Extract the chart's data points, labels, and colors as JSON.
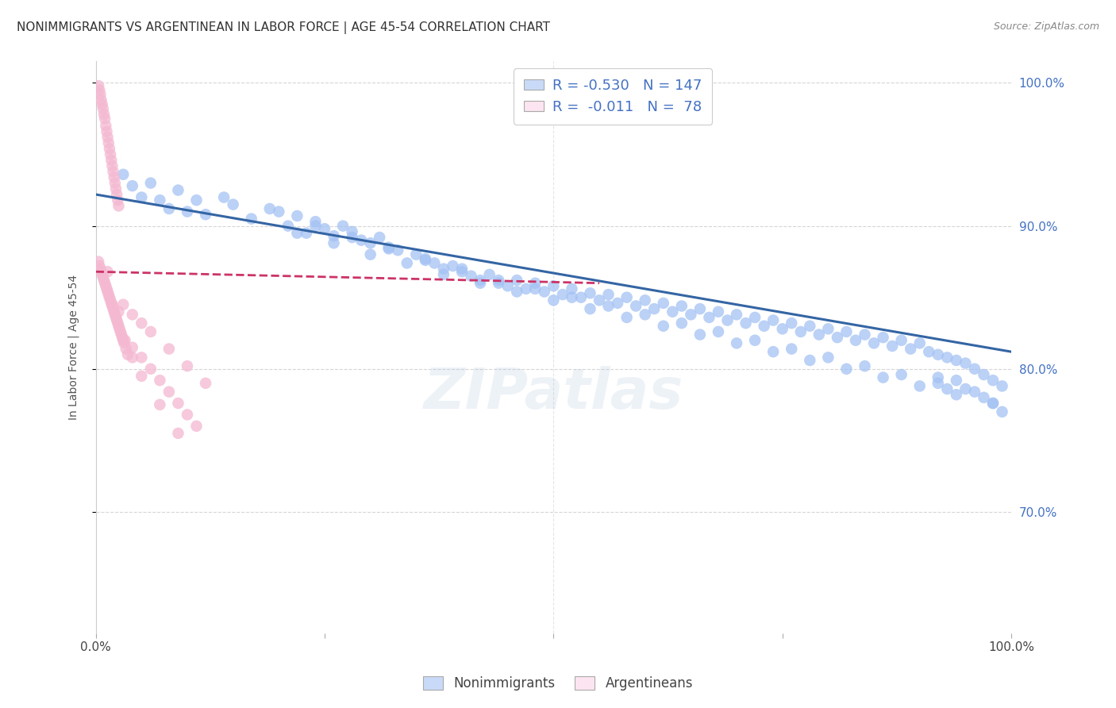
{
  "title": "NONIMMIGRANTS VS ARGENTINEAN IN LABOR FORCE | AGE 45-54 CORRELATION CHART",
  "source": "Source: ZipAtlas.com",
  "ylabel": "In Labor Force | Age 45-54",
  "watermark": "ZIPatlas",
  "legend_r1": "-0.530",
  "legend_n1": "147",
  "legend_r2": "-0.011",
  "legend_n2": "78",
  "blue_color": "#a4c2f4",
  "pink_color": "#f4b8d1",
  "blue_line_color": "#3465a4",
  "pink_line_color": "#cc3366",
  "blue_fill": "#c9daf8",
  "pink_fill": "#fce5f0",
  "background": "#ffffff",
  "grid_color": "#cccccc",
  "title_color": "#444444",
  "right_axis_color": "#4472c4",
  "blue_scatter_x": [
    0.03,
    0.04,
    0.05,
    0.06,
    0.07,
    0.08,
    0.09,
    0.1,
    0.11,
    0.12,
    0.14,
    0.15,
    0.17,
    0.19,
    0.21,
    0.22,
    0.23,
    0.24,
    0.25,
    0.26,
    0.27,
    0.28,
    0.29,
    0.3,
    0.31,
    0.32,
    0.33,
    0.35,
    0.36,
    0.37,
    0.38,
    0.39,
    0.4,
    0.41,
    0.42,
    0.43,
    0.44,
    0.45,
    0.46,
    0.47,
    0.48,
    0.49,
    0.5,
    0.51,
    0.52,
    0.53,
    0.54,
    0.55,
    0.56,
    0.57,
    0.58,
    0.59,
    0.6,
    0.61,
    0.62,
    0.63,
    0.64,
    0.65,
    0.66,
    0.67,
    0.68,
    0.69,
    0.7,
    0.71,
    0.72,
    0.73,
    0.74,
    0.75,
    0.76,
    0.77,
    0.78,
    0.79,
    0.8,
    0.81,
    0.82,
    0.83,
    0.84,
    0.85,
    0.86,
    0.87,
    0.88,
    0.89,
    0.9,
    0.91,
    0.92,
    0.93,
    0.94,
    0.95,
    0.96,
    0.97,
    0.98,
    0.99,
    0.22,
    0.26,
    0.3,
    0.34,
    0.38,
    0.42,
    0.46,
    0.5,
    0.54,
    0.58,
    0.62,
    0.66,
    0.7,
    0.74,
    0.78,
    0.82,
    0.86,
    0.9,
    0.94,
    0.98,
    0.2,
    0.24,
    0.28,
    0.32,
    0.36,
    0.4,
    0.44,
    0.48,
    0.52,
    0.56,
    0.6,
    0.64,
    0.68,
    0.72,
    0.76,
    0.8,
    0.84,
    0.88,
    0.92,
    0.96,
    0.97,
    0.98,
    0.99,
    0.95,
    0.94,
    0.93,
    0.92
  ],
  "blue_scatter_y": [
    0.936,
    0.928,
    0.92,
    0.93,
    0.918,
    0.912,
    0.925,
    0.91,
    0.918,
    0.908,
    0.92,
    0.915,
    0.905,
    0.912,
    0.9,
    0.907,
    0.895,
    0.903,
    0.898,
    0.893,
    0.9,
    0.896,
    0.89,
    0.888,
    0.892,
    0.885,
    0.883,
    0.88,
    0.877,
    0.874,
    0.87,
    0.872,
    0.868,
    0.865,
    0.862,
    0.866,
    0.86,
    0.858,
    0.862,
    0.856,
    0.86,
    0.854,
    0.858,
    0.852,
    0.856,
    0.85,
    0.853,
    0.848,
    0.852,
    0.846,
    0.85,
    0.844,
    0.848,
    0.842,
    0.846,
    0.84,
    0.844,
    0.838,
    0.842,
    0.836,
    0.84,
    0.834,
    0.838,
    0.832,
    0.836,
    0.83,
    0.834,
    0.828,
    0.832,
    0.826,
    0.83,
    0.824,
    0.828,
    0.822,
    0.826,
    0.82,
    0.824,
    0.818,
    0.822,
    0.816,
    0.82,
    0.814,
    0.818,
    0.812,
    0.81,
    0.808,
    0.806,
    0.804,
    0.8,
    0.796,
    0.792,
    0.788,
    0.895,
    0.888,
    0.88,
    0.874,
    0.866,
    0.86,
    0.854,
    0.848,
    0.842,
    0.836,
    0.83,
    0.824,
    0.818,
    0.812,
    0.806,
    0.8,
    0.794,
    0.788,
    0.782,
    0.776,
    0.91,
    0.9,
    0.892,
    0.884,
    0.876,
    0.87,
    0.862,
    0.856,
    0.85,
    0.844,
    0.838,
    0.832,
    0.826,
    0.82,
    0.814,
    0.808,
    0.802,
    0.796,
    0.79,
    0.784,
    0.78,
    0.776,
    0.77,
    0.786,
    0.792,
    0.786,
    0.794
  ],
  "pink_scatter_x": [
    0.003,
    0.004,
    0.005,
    0.006,
    0.007,
    0.008,
    0.009,
    0.01,
    0.011,
    0.012,
    0.013,
    0.014,
    0.015,
    0.016,
    0.017,
    0.018,
    0.019,
    0.02,
    0.021,
    0.022,
    0.023,
    0.024,
    0.025,
    0.003,
    0.005,
    0.007,
    0.009,
    0.011,
    0.013,
    0.015,
    0.017,
    0.019,
    0.021,
    0.023,
    0.025,
    0.027,
    0.029,
    0.031,
    0.033,
    0.035,
    0.004,
    0.006,
    0.008,
    0.01,
    0.012,
    0.014,
    0.016,
    0.018,
    0.02,
    0.022,
    0.024,
    0.026,
    0.028,
    0.03,
    0.04,
    0.05,
    0.06,
    0.07,
    0.08,
    0.09,
    0.1,
    0.11,
    0.03,
    0.04,
    0.05,
    0.06,
    0.08,
    0.1,
    0.12,
    0.013,
    0.018,
    0.025,
    0.032,
    0.04,
    0.05,
    0.07,
    0.09
  ],
  "pink_scatter_y": [
    0.998,
    0.995,
    0.992,
    0.988,
    0.985,
    0.982,
    0.978,
    0.975,
    0.97,
    0.966,
    0.962,
    0.958,
    0.954,
    0.95,
    0.946,
    0.942,
    0.938,
    0.934,
    0.93,
    0.926,
    0.922,
    0.918,
    0.914,
    0.875,
    0.87,
    0.866,
    0.862,
    0.858,
    0.854,
    0.85,
    0.846,
    0.842,
    0.838,
    0.834,
    0.83,
    0.826,
    0.822,
    0.818,
    0.814,
    0.81,
    0.872,
    0.868,
    0.864,
    0.86,
    0.856,
    0.852,
    0.848,
    0.844,
    0.84,
    0.836,
    0.832,
    0.828,
    0.824,
    0.82,
    0.815,
    0.808,
    0.8,
    0.792,
    0.784,
    0.776,
    0.768,
    0.76,
    0.845,
    0.838,
    0.832,
    0.826,
    0.814,
    0.802,
    0.79,
    0.868,
    0.845,
    0.84,
    0.82,
    0.808,
    0.795,
    0.775,
    0.755
  ],
  "blue_trend_x0": 0.0,
  "blue_trend_x1": 1.0,
  "blue_trend_y0": 0.922,
  "blue_trend_y1": 0.812,
  "pink_trend_x0": 0.0,
  "pink_trend_x1": 0.55,
  "pink_trend_y0": 0.868,
  "pink_trend_y1": 0.86,
  "xlim": [
    0.0,
    1.0
  ],
  "ylim": [
    0.615,
    1.015
  ],
  "yticks": [
    0.7,
    0.8,
    0.9,
    1.0
  ],
  "ytick_labels": [
    "70.0%",
    "80.0%",
    "90.0%",
    "100.0%"
  ]
}
